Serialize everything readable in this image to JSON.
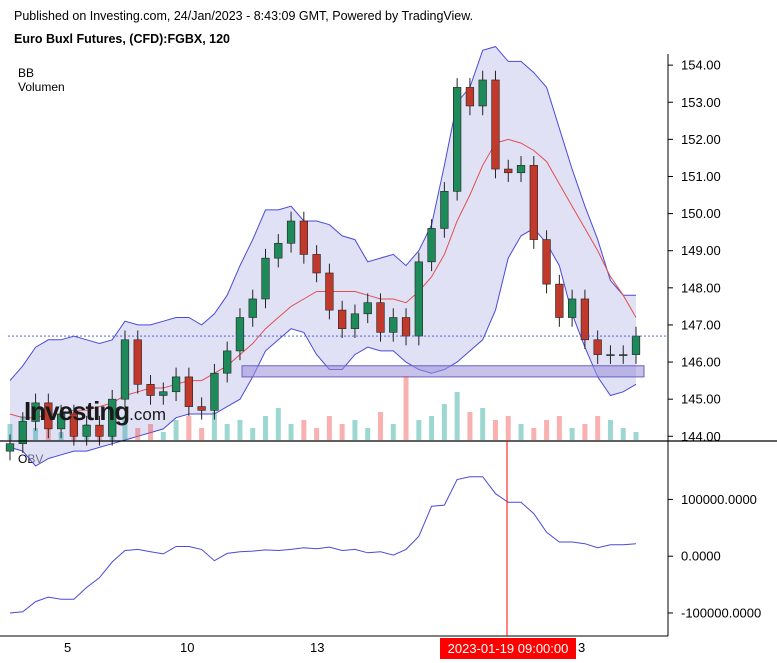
{
  "header": {
    "published": "Published on Investing.com, 24/Jan/2023 - 8:43:09 GMT, Powered by TradingView.",
    "title": "Euro Buxl Futures, (CFD):FGBX, 120"
  },
  "indicators": {
    "bb_label": "BB",
    "volume_label": "Volumen",
    "obv_label": "OBV"
  },
  "logo": {
    "main": "Investing",
    "suffix": ".com"
  },
  "crosshair": {
    "label": "2023-01-19 09:00:00"
  },
  "xaxis": {
    "labels": [
      "5",
      "10",
      "13",
      "3"
    ]
  },
  "colors": {
    "up": "#26a69a",
    "down": "#ef5350",
    "bb_band": "#4a4ad8",
    "bb_mid": "#e05050",
    "obv_line": "#4a4ad8",
    "crosshair": "#ff0000"
  },
  "chart_data": [
    {
      "type": "candlestick",
      "title": "Euro Buxl Futures, (CFD):FGBX, 120",
      "ylim": [
        143.9,
        154.3
      ],
      "yticks": [
        "154.00",
        "153.00",
        "152.00",
        "151.00",
        "150.00",
        "149.00",
        "148.00",
        "147.00",
        "146.00",
        "145.00",
        "144.00"
      ],
      "last_price": 146.7,
      "support_zone": [
        145.6,
        145.9
      ],
      "close": [
        143.8,
        144.4,
        144.9,
        144.2,
        144.6,
        144.0,
        144.3,
        144.0,
        145.0,
        146.6,
        145.4,
        145.1,
        145.2,
        145.6,
        144.8,
        144.7,
        145.7,
        146.3,
        147.2,
        147.7,
        148.8,
        149.2,
        149.8,
        148.9,
        148.4,
        147.4,
        146.9,
        147.3,
        147.6,
        146.8,
        147.2,
        146.7,
        148.7,
        149.6,
        150.6,
        153.4,
        152.9,
        153.6,
        151.2,
        151.1,
        151.3,
        149.3,
        148.1,
        147.2,
        147.7,
        146.6,
        146.2,
        146.2,
        146.2,
        146.7
      ],
      "bb_upper": [
        145.5,
        145.9,
        146.4,
        146.6,
        146.6,
        146.7,
        146.6,
        146.5,
        146.6,
        147.1,
        147.0,
        147.0,
        147.1,
        147.2,
        147.2,
        147.0,
        147.3,
        147.8,
        148.6,
        149.3,
        150.1,
        150.1,
        150.2,
        149.8,
        149.8,
        149.7,
        149.4,
        149.3,
        148.7,
        148.8,
        148.9,
        148.6,
        149.0,
        149.7,
        151.3,
        153.0,
        153.4,
        154.4,
        154.5,
        154.1,
        154.1,
        153.8,
        153.4,
        152.3,
        151.2,
        150.2,
        149.3,
        148.2,
        147.8,
        147.8
      ],
      "bb_mid": [
        144.6,
        144.5,
        144.5,
        144.6,
        144.6,
        144.7,
        144.7,
        144.8,
        144.9,
        145.1,
        145.2,
        145.3,
        145.3,
        145.4,
        145.5,
        145.5,
        145.7,
        145.9,
        146.2,
        146.5,
        146.9,
        147.2,
        147.5,
        147.7,
        147.9,
        147.9,
        147.9,
        147.9,
        147.8,
        147.7,
        147.7,
        147.6,
        147.9,
        148.3,
        148.9,
        149.8,
        150.5,
        151.3,
        151.9,
        152.0,
        151.9,
        151.7,
        151.4,
        150.8,
        150.2,
        149.6,
        149.0,
        148.3,
        147.8,
        147.2
      ],
      "bb_lower": [
        143.7,
        143.6,
        143.2,
        143.4,
        143.5,
        143.6,
        143.6,
        143.7,
        143.8,
        143.9,
        144.0,
        144.1,
        144.2,
        144.5,
        144.6,
        144.6,
        144.6,
        144.8,
        145.0,
        145.6,
        146.3,
        146.6,
        146.9,
        146.8,
        146.2,
        145.8,
        145.8,
        146.2,
        146.4,
        146.3,
        146.3,
        146.0,
        145.8,
        145.7,
        145.8,
        146.0,
        146.3,
        146.6,
        147.4,
        148.8,
        149.4,
        149.6,
        149.2,
        148.6,
        147.3,
        146.4,
        145.6,
        145.1,
        145.2,
        145.4
      ],
      "volume": [
        4,
        6,
        3,
        5,
        2,
        7,
        4,
        3,
        5,
        6,
        3,
        4,
        2,
        5,
        6,
        3,
        7,
        4,
        5,
        3,
        6,
        8,
        4,
        5,
        3,
        6,
        4,
        5,
        3,
        7,
        4,
        16,
        5,
        6,
        9,
        12,
        7,
        8,
        5,
        6,
        4,
        3,
        5,
        6,
        3,
        4,
        6,
        5,
        3,
        2
      ]
    },
    {
      "type": "line",
      "title": "OBV",
      "ylim": [
        -130000,
        180000
      ],
      "yticks": [
        "100000.0000",
        "0.0000",
        "-100000.0000"
      ],
      "values": [
        -100000,
        -98000,
        -80000,
        -72000,
        -76000,
        -76000,
        -55000,
        -38000,
        -10000,
        10000,
        12000,
        8000,
        4000,
        17000,
        17000,
        12000,
        -8000,
        5000,
        8000,
        9000,
        11000,
        10000,
        12000,
        15000,
        13000,
        16000,
        10000,
        12000,
        6000,
        8000,
        2000,
        12000,
        35000,
        88000,
        90000,
        135000,
        140000,
        140000,
        110000,
        95000,
        95000,
        75000,
        42000,
        25000,
        25000,
        22000,
        15000,
        20000,
        20000,
        22000
      ]
    }
  ]
}
